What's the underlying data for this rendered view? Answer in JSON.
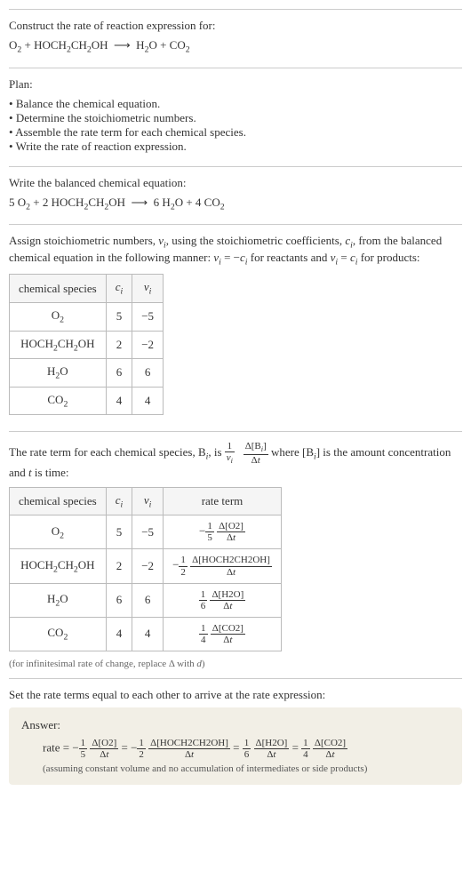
{
  "title": "Construct the rate of reaction expression for:",
  "reaction_unbalanced_html": "O<sub>2</sub> + HOCH<sub>2</sub>CH<sub>2</sub>OH &nbsp;⟶&nbsp; H<sub>2</sub>O + CO<sub>2</sub>",
  "plan_label": "Plan:",
  "plan_items": [
    "Balance the chemical equation.",
    "Determine the stoichiometric numbers.",
    "Assemble the rate term for each chemical species.",
    "Write the rate of reaction expression."
  ],
  "balanced_label": "Write the balanced chemical equation:",
  "reaction_balanced_html": "5 O<sub>2</sub> + 2 HOCH<sub>2</sub>CH<sub>2</sub>OH &nbsp;⟶&nbsp; 6 H<sub>2</sub>O + 4 CO<sub>2</sub>",
  "stoich_text_html": "Assign stoichiometric numbers, <span class=\"ital\">ν<sub>i</sub></span>, using the stoichiometric coefficients, <span class=\"ital\">c<sub>i</sub></span>, from the balanced chemical equation in the following manner: <span class=\"ital\">ν<sub>i</sub></span> = −<span class=\"ital\">c<sub>i</sub></span> for reactants and <span class=\"ital\">ν<sub>i</sub></span> = <span class=\"ital\">c<sub>i</sub></span> for products:",
  "stoich_table": {
    "headers_html": [
      "chemical species",
      "<span class=\"ital\">c<sub>i</sub></span>",
      "<span class=\"ital\">ν<sub>i</sub></span>"
    ],
    "rows_html": [
      [
        "O<sub>2</sub>",
        "5",
        "−5"
      ],
      [
        "HOCH<sub>2</sub>CH<sub>2</sub>OH",
        "2",
        "−2"
      ],
      [
        "H<sub>2</sub>O",
        "6",
        "6"
      ],
      [
        "CO<sub>2</sub>",
        "4",
        "4"
      ]
    ]
  },
  "rate_term_text_1_html": "The rate term for each chemical species, B<sub><span class=\"ital\">i</span></sub>, is ",
  "rate_term_frac1_num_html": "1",
  "rate_term_frac1_den_html": "<span class=\"ital\">ν<sub>i</sub></span>",
  "rate_term_frac2_num_html": "Δ[B<sub><span class=\"ital\">i</span></sub>]",
  "rate_term_frac2_den_html": "Δ<span class=\"ital\">t</span>",
  "rate_term_text_2_html": " where [B<sub><span class=\"ital\">i</span></sub>] is the amount concentration and <span class=\"ital\">t</span> is time:",
  "rate_table": {
    "headers_html": [
      "chemical species",
      "<span class=\"ital\">c<sub>i</sub></span>",
      "<span class=\"ital\">ν<sub>i</sub></span>",
      "rate term"
    ],
    "rows": [
      {
        "species_html": "O<sub>2</sub>",
        "c": "5",
        "nu": "−5",
        "sign": "−",
        "coeff_den": "5",
        "delta_num_html": "Δ[O2]"
      },
      {
        "species_html": "HOCH<sub>2</sub>CH<sub>2</sub>OH",
        "c": "2",
        "nu": "−2",
        "sign": "−",
        "coeff_den": "2",
        "delta_num_html": "Δ[HOCH2CH2OH]"
      },
      {
        "species_html": "H<sub>2</sub>O",
        "c": "6",
        "nu": "6",
        "sign": "",
        "coeff_den": "6",
        "delta_num_html": "Δ[H2O]"
      },
      {
        "species_html": "CO<sub>2</sub>",
        "c": "4",
        "nu": "4",
        "sign": "",
        "coeff_den": "4",
        "delta_num_html": "Δ[CO2]"
      }
    ]
  },
  "infinitesimal_note_html": "(for infinitesimal rate of change, replace Δ with <span class=\"ital\">d</span>)",
  "set_equal_text": "Set the rate terms equal to each other to arrive at the rate expression:",
  "answer_label": "Answer:",
  "answer_rate_prefix": "rate = ",
  "answer_terms": [
    {
      "sign": "−",
      "coeff_den": "5",
      "delta_num": "Δ[O2]"
    },
    {
      "sign": "−",
      "coeff_den": "2",
      "delta_num": "Δ[HOCH2CH2OH]"
    },
    {
      "sign": "",
      "coeff_den": "6",
      "delta_num": "Δ[H2O]"
    },
    {
      "sign": "",
      "coeff_den": "4",
      "delta_num": "Δ[CO2]"
    }
  ],
  "answer_delta_den_html": "Δ<span class=\"ital\">t</span>",
  "answer_assume": "(assuming constant volume and no accumulation of intermediates or side products)",
  "colors": {
    "border": "#cccccc",
    "table_border": "#bbbbbb",
    "table_header_bg": "#f5f5f5",
    "answer_bg": "#f2efe6",
    "text": "#333333",
    "note": "#666666"
  }
}
